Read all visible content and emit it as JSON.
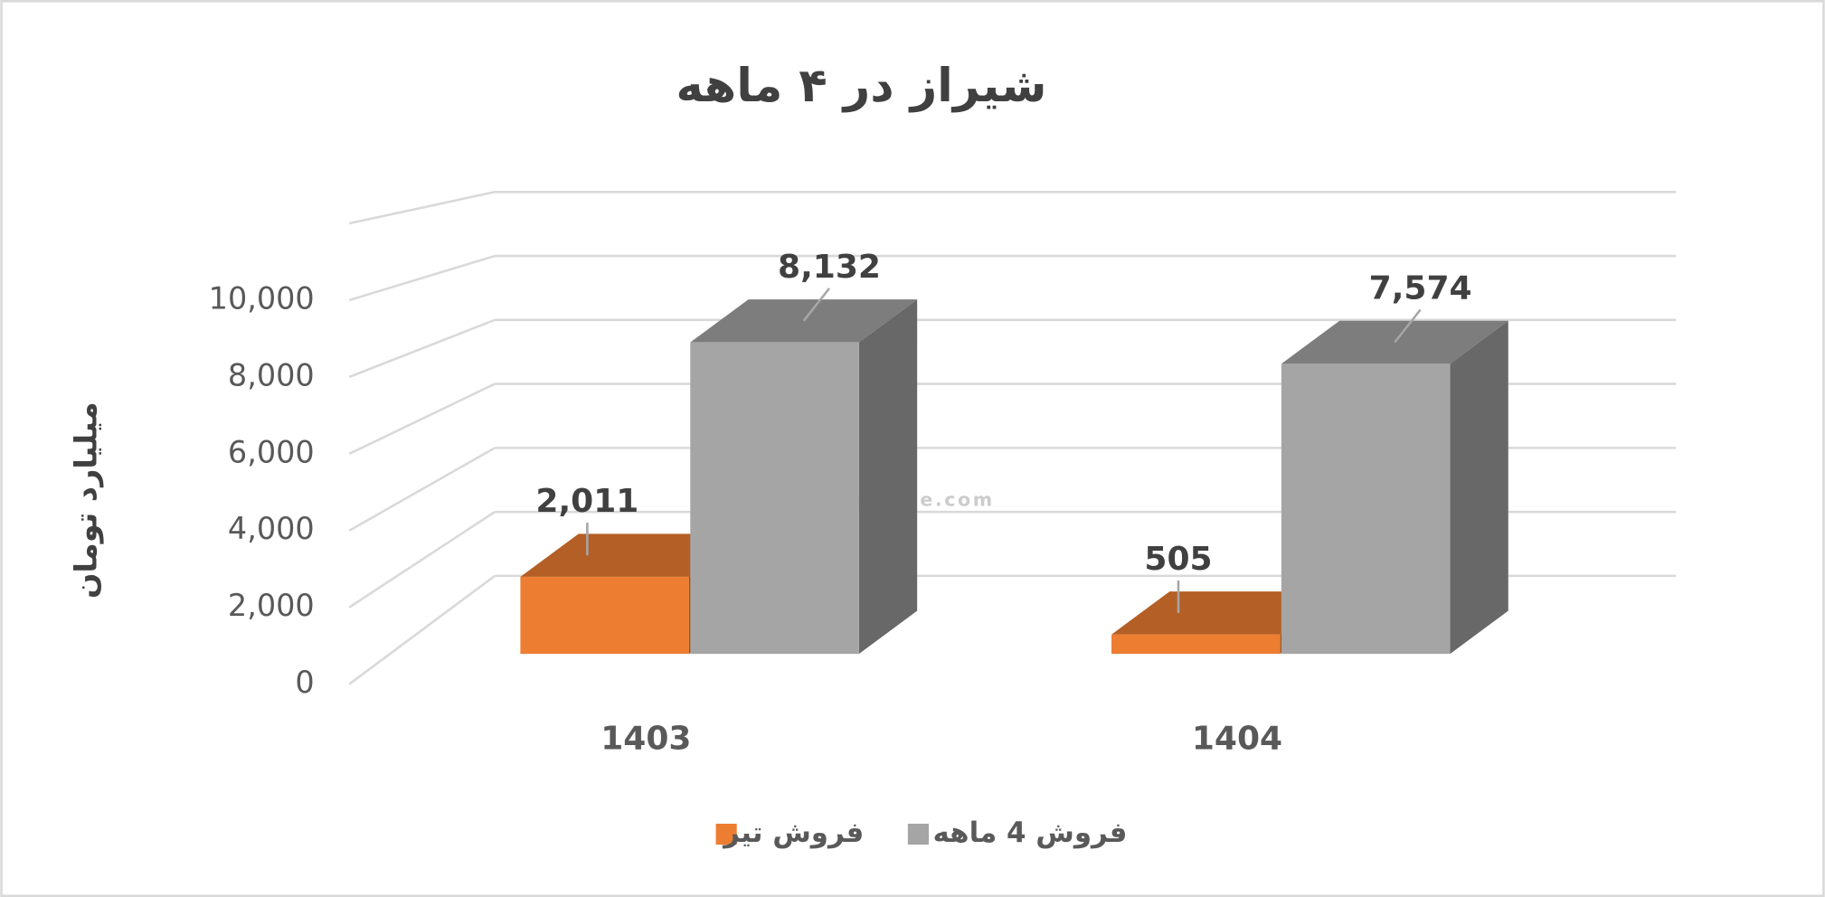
{
  "chart_data": {
    "type": "bar3d",
    "title": "شیراز در ۴ ماهه",
    "y_label": "میلیارد تومان",
    "categories": [
      "1403",
      "1404"
    ],
    "series": [
      {
        "name": "فروش تیر",
        "color": "#ED7D31",
        "values": [
          2011,
          505
        ],
        "value_labels": [
          "2,011",
          "505"
        ]
      },
      {
        "name": "فروش 4  ماهه",
        "color": "#A5A5A5",
        "values": [
          8132,
          7574
        ],
        "value_labels": [
          "8,132",
          "7,574"
        ]
      }
    ],
    "ylim": [
      0,
      12000
    ],
    "yticks": [
      0,
      {
        "value": 2000,
        "label": "2,000"
      },
      {
        "value": 4000,
        "label": "4,000"
      },
      {
        "value": 6000,
        "label": "6,000"
      },
      {
        "value": 8000,
        "label": "8,000"
      },
      {
        "value": 10000,
        "label": "10,000"
      }
    ],
    "grid": true,
    "legend": "bottom",
    "watermark": "nabzebourse.com"
  }
}
